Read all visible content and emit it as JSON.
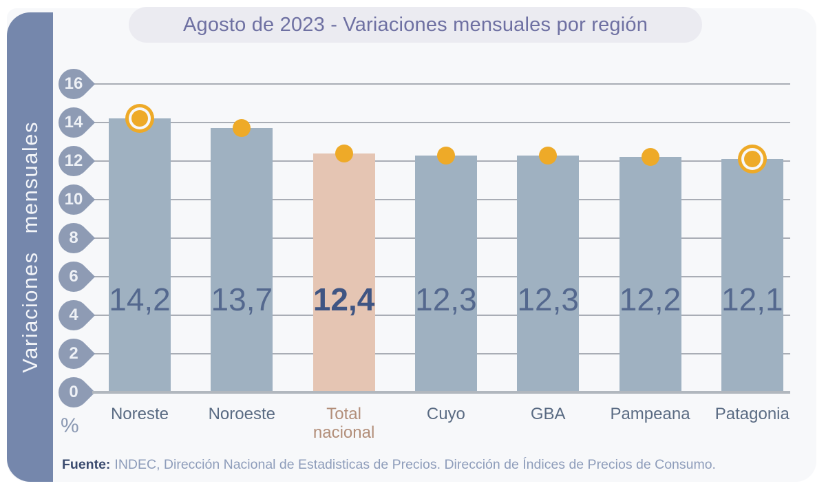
{
  "header": {
    "title": "Agosto de 2023 - Variaciones mensuales por región"
  },
  "y_axis": {
    "title": "Variaciones mensuales",
    "unit": "%"
  },
  "footer": {
    "source_label": "Fuente:",
    "source_text": "INDEC, Dirección Nacional de Estadisticas de Precios. Dirección de Índices de Precios de Consumo."
  },
  "colors": {
    "sidebar": "#7587ac",
    "tick_badge": "#8e9bb4",
    "bar": "#9fb1c1",
    "bar_highlight": "#e5c5b3",
    "marker": "#eeaa28",
    "marker_ring_gap": "#f7f8fa",
    "gridline": "#a9adb5",
    "baseline": "#b1b7be",
    "value_label": "#54688e",
    "value_label_highlight": "#3f5583",
    "category_label": "#5a6b83",
    "category_label_highlight": "#b28e79",
    "title_text": "#6e70a2",
    "title_pill_bg": "#ebebf1",
    "panel_bg": "#f7f8fa"
  },
  "chart_data": {
    "type": "bar",
    "title": "Agosto de 2023 - Variaciones mensuales por región",
    "xlabel": "",
    "ylabel": "Variaciones mensuales",
    "y_unit": "%",
    "categories": [
      "Noreste",
      "Noroeste",
      "Total nacional",
      "Cuyo",
      "GBA",
      "Pampeana",
      "Patagonia"
    ],
    "values": [
      14.2,
      13.7,
      12.4,
      12.3,
      12.3,
      12.2,
      12.1
    ],
    "value_labels": [
      "14,2",
      "13,7",
      "12,4",
      "12,3",
      "12,3",
      "12,2",
      "12,1"
    ],
    "highlighted_category": "Total nacional",
    "ringed_marker_categories": [
      "Noreste",
      "Patagonia"
    ],
    "yticks": [
      16,
      14,
      12,
      10,
      8,
      6,
      4,
      2,
      0
    ],
    "ylim": [
      0,
      17
    ],
    "grid": true,
    "legend": false
  }
}
